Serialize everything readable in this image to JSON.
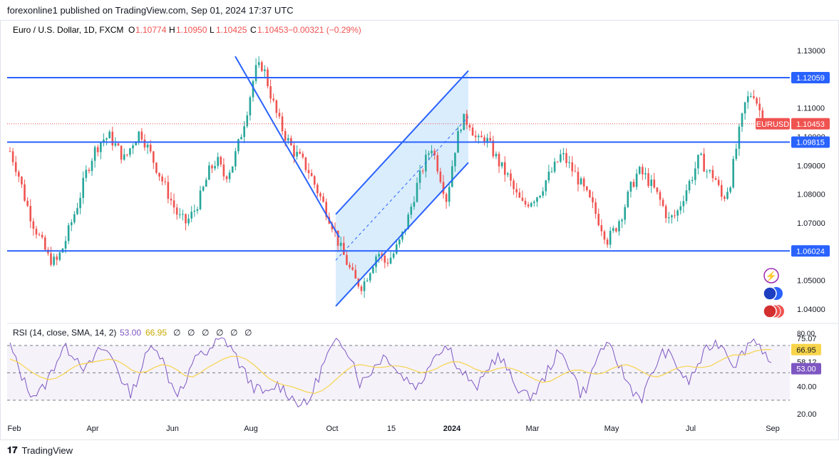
{
  "header": {
    "publisher_line": "forexonline1 published on TradingView.com, Sep 01, 2024 17:37 UTC"
  },
  "chart_info": {
    "symbol_line": "Euro / U.S. Dollar, 1D, FXCM",
    "open_label": "O",
    "open": "1.10774",
    "high_label": "H",
    "high": "1.10950",
    "low_label": "L",
    "low": "1.10425",
    "close_label": "C",
    "close": "1.10453",
    "change": "−0.00321 (−0.29%)"
  },
  "colors": {
    "up": "#26a69a",
    "down": "#ef5350",
    "line": "#2962ff",
    "channel_fill": "#bbdefb",
    "rsi": "#7e57c2",
    "rsi_ma": "#f7d44a"
  },
  "chart_data": [
    {
      "type": "candlestick",
      "ylim": [
        1.036,
        1.134
      ],
      "y_ticks": [
        "1.13000",
        "1.11000",
        "1.09000",
        "1.08000",
        "1.07000",
        "1.05000",
        "1.04000"
      ],
      "partially_hidden_tick": "1.10000",
      "x_ticks": [
        "Feb",
        "Apr",
        "Jun",
        "Aug",
        "Oct",
        "15",
        "2024",
        "Mar",
        "May",
        "Jul",
        "Sep"
      ],
      "price_series": [
        1.095,
        1.088,
        1.078,
        1.07,
        1.064,
        1.058,
        1.056,
        1.062,
        1.07,
        1.078,
        1.088,
        1.095,
        1.099,
        1.1,
        1.096,
        1.092,
        1.098,
        1.102,
        1.096,
        1.09,
        1.084,
        1.078,
        1.072,
        1.07,
        1.074,
        1.08,
        1.088,
        1.092,
        1.086,
        1.09,
        1.099,
        1.11,
        1.123,
        1.125,
        1.115,
        1.106,
        1.1,
        1.095,
        1.092,
        1.088,
        1.082,
        1.076,
        1.07,
        1.062,
        1.056,
        1.05,
        1.048,
        1.054,
        1.06,
        1.056,
        1.059,
        1.064,
        1.072,
        1.082,
        1.09,
        1.097,
        1.088,
        1.078,
        1.095,
        1.106,
        1.105,
        1.098,
        1.1,
        1.095,
        1.09,
        1.086,
        1.08,
        1.076,
        1.078,
        1.08,
        1.085,
        1.089,
        1.094,
        1.09,
        1.086,
        1.081,
        1.076,
        1.07,
        1.064,
        1.068,
        1.074,
        1.082,
        1.088,
        1.086,
        1.082,
        1.077,
        1.071,
        1.073,
        1.08,
        1.086,
        1.093,
        1.088,
        1.086,
        1.078,
        1.084,
        1.099,
        1.112,
        1.116,
        1.108,
        1.1045
      ],
      "price_labels": [
        {
          "value": 1.12059,
          "label": "1.12059"
        },
        {
          "value": 1.09815,
          "label": "1.09815"
        },
        {
          "value": 1.06024,
          "label": "1.06024"
        }
      ],
      "current_price": {
        "symbol": "EURUSD",
        "value": 1.10453,
        "label": "1.10453"
      },
      "horizontal_levels": [
        1.12059,
        1.09815,
        1.06024
      ],
      "trend_line": {
        "from": [
          "Jul 2023",
          1.128
        ],
        "to": [
          "Sep 2023",
          1.065
        ]
      },
      "channel": {
        "upper": {
          "from": [
            "Oct 2023",
            1.073
          ],
          "to": [
            "Jan 2024",
            1.123
          ]
        },
        "lower": {
          "from": [
            "Oct 2023",
            1.041
          ],
          "to": [
            "Jan 2024",
            1.091
          ]
        }
      }
    },
    {
      "type": "line",
      "title": "RSI (14, close, SMA, 14, 2)",
      "rsi_value": "53.00",
      "rsi_ma_value": "66.95",
      "ylim": [
        18,
        84
      ],
      "y_ticks": [
        "75.07",
        "58.12",
        "40.00",
        "20.00"
      ],
      "y_tick_values": [
        75.07,
        58.12,
        40.0,
        20.0
      ],
      "hidden_tick": "80.00",
      "band": [
        70,
        30
      ],
      "midline": 50,
      "rsi_series": [
        70,
        55,
        42,
        34,
        36,
        45,
        58,
        68,
        66,
        60,
        52,
        60,
        68,
        64,
        56,
        40,
        35,
        50,
        64,
        72,
        60,
        44,
        36,
        40,
        56,
        68,
        62,
        72,
        74,
        70,
        58,
        48,
        40,
        36,
        34,
        42,
        38,
        32,
        28,
        26,
        40,
        54,
        66,
        72,
        70,
        60,
        42,
        48,
        56,
        62,
        60,
        50,
        46,
        42,
        40,
        58,
        64,
        70,
        66,
        52,
        48,
        38,
        44,
        56,
        62,
        56,
        44,
        38,
        32,
        36,
        44,
        56,
        64,
        60,
        50,
        34,
        42,
        60,
        70,
        66,
        56,
        44,
        36,
        32,
        44,
        58,
        66,
        60,
        52,
        42,
        52,
        62,
        70,
        72,
        68,
        56,
        62,
        72,
        75,
        66,
        53
      ],
      "rsi_ma_series": [
        60,
        58,
        54,
        50,
        47,
        45,
        46,
        49,
        53,
        56,
        57,
        58,
        59,
        60,
        59,
        56,
        52,
        50,
        51,
        54,
        56,
        55,
        52,
        48,
        47,
        50,
        54,
        57,
        60,
        62,
        62,
        60,
        56,
        51,
        46,
        43,
        41,
        40,
        38,
        36,
        35,
        37,
        41,
        46,
        51,
        55,
        56,
        55,
        54,
        54,
        55,
        55,
        54,
        52,
        50,
        51,
        53,
        56,
        58,
        58,
        56,
        53,
        51,
        51,
        53,
        54,
        53,
        51,
        48,
        45,
        43,
        44,
        47,
        50,
        52,
        52,
        50,
        49,
        50,
        53,
        55,
        56,
        54,
        51,
        48,
        47,
        49,
        52,
        54,
        55,
        54,
        54,
        55,
        58,
        61,
        63,
        63,
        64,
        66,
        67,
        66.95
      ]
    }
  ]
}
